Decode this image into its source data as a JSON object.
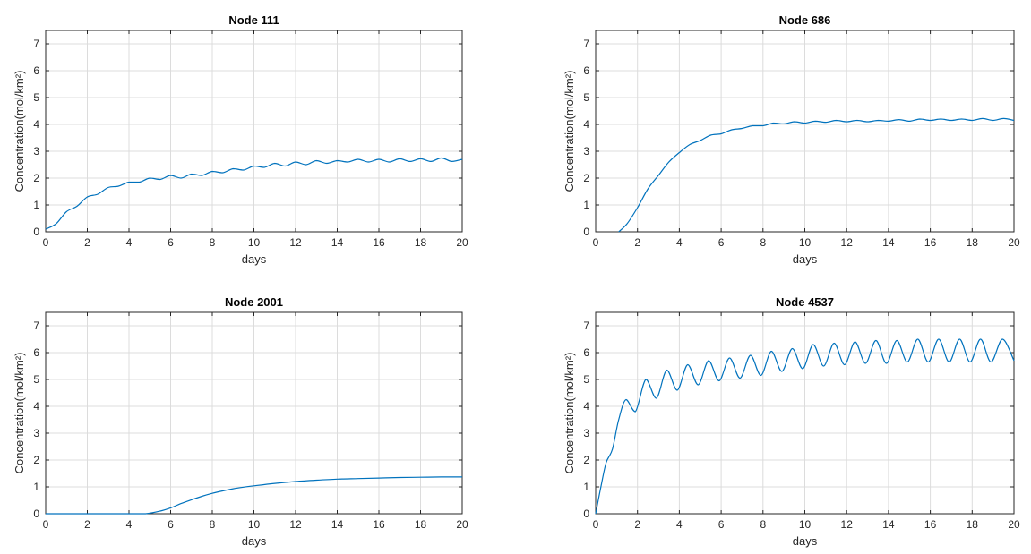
{
  "chart_data": [
    {
      "type": "line",
      "title": "Node 111",
      "xlabel": "days",
      "ylabel": "Concentration(mol/km²)",
      "xlim": [
        0,
        20
      ],
      "ylim": [
        0,
        7.5
      ],
      "xticks": [
        "0",
        "2",
        "4",
        "6",
        "8",
        "10",
        "12",
        "14",
        "16",
        "18",
        "20"
      ],
      "yticks": [
        "0",
        "1",
        "2",
        "3",
        "4",
        "5",
        "6",
        "7"
      ],
      "grid": true,
      "series": [
        {
          "color": "#0072bd",
          "x": [
            0,
            0.5,
            1,
            1.5,
            2,
            2.5,
            3,
            3.5,
            4,
            4.5,
            5,
            5.5,
            6,
            6.5,
            7,
            7.5,
            8,
            8.5,
            9,
            9.5,
            10,
            10.5,
            11,
            11.5,
            12,
            12.5,
            13,
            13.5,
            14,
            14.5,
            15,
            15.5,
            16,
            16.5,
            17,
            17.5,
            18,
            18.5,
            19,
            19.5,
            20
          ],
          "y": [
            0.1,
            0.3,
            0.75,
            0.95,
            1.3,
            1.4,
            1.65,
            1.7,
            1.85,
            1.85,
            2.0,
            1.95,
            2.1,
            2.0,
            2.15,
            2.1,
            2.25,
            2.2,
            2.35,
            2.3,
            2.45,
            2.4,
            2.55,
            2.45,
            2.6,
            2.5,
            2.65,
            2.55,
            2.65,
            2.6,
            2.7,
            2.6,
            2.7,
            2.6,
            2.72,
            2.62,
            2.72,
            2.62,
            2.75,
            2.62,
            2.7
          ]
        }
      ]
    },
    {
      "type": "line",
      "title": "Node 686",
      "xlabel": "days",
      "ylabel": "Concentration(mol/km²)",
      "xlim": [
        0,
        20
      ],
      "ylim": [
        0,
        7.5
      ],
      "xticks": [
        "0",
        "2",
        "4",
        "6",
        "8",
        "10",
        "12",
        "14",
        "16",
        "18",
        "20"
      ],
      "yticks": [
        "0",
        "1",
        "2",
        "3",
        "4",
        "5",
        "6",
        "7"
      ],
      "grid": true,
      "series": [
        {
          "color": "#0072bd",
          "x": [
            1.1,
            1.5,
            2,
            2.5,
            3,
            3.5,
            4,
            4.5,
            5,
            5.5,
            6,
            6.5,
            7,
            7.5,
            8,
            8.5,
            9,
            9.5,
            10,
            10.5,
            11,
            11.5,
            12,
            12.5,
            13,
            13.5,
            14,
            14.5,
            15,
            15.5,
            16,
            16.5,
            17,
            17.5,
            18,
            18.5,
            19,
            19.5,
            20
          ],
          "y": [
            0.0,
            0.3,
            0.9,
            1.6,
            2.1,
            2.6,
            2.95,
            3.25,
            3.4,
            3.6,
            3.65,
            3.8,
            3.85,
            3.95,
            3.95,
            4.05,
            4.02,
            4.1,
            4.05,
            4.12,
            4.08,
            4.15,
            4.1,
            4.15,
            4.1,
            4.15,
            4.12,
            4.18,
            4.12,
            4.2,
            4.15,
            4.2,
            4.15,
            4.2,
            4.15,
            4.22,
            4.15,
            4.22,
            4.15
          ]
        }
      ]
    },
    {
      "type": "line",
      "title": "Node 2001",
      "xlabel": "days",
      "ylabel": "Concentration(mol/km²)",
      "xlim": [
        0,
        20
      ],
      "ylim": [
        0,
        7.5
      ],
      "xticks": [
        "0",
        "2",
        "4",
        "6",
        "8",
        "10",
        "12",
        "14",
        "16",
        "18",
        "20"
      ],
      "yticks": [
        "0",
        "1",
        "2",
        "3",
        "4",
        "5",
        "6",
        "7"
      ],
      "grid": true,
      "series": [
        {
          "color": "#0072bd",
          "x": [
            0,
            1,
            2,
            3,
            4,
            4.8,
            5.5,
            6,
            6.5,
            7,
            7.5,
            8,
            8.5,
            9,
            9.5,
            10,
            11,
            12,
            13,
            14,
            15,
            16,
            17,
            18,
            19,
            20
          ],
          "y": [
            0.0,
            0.0,
            0.0,
            0.0,
            0.0,
            0.0,
            0.1,
            0.22,
            0.38,
            0.52,
            0.65,
            0.76,
            0.85,
            0.93,
            0.99,
            1.04,
            1.13,
            1.2,
            1.25,
            1.29,
            1.31,
            1.33,
            1.35,
            1.36,
            1.37,
            1.37
          ]
        }
      ]
    },
    {
      "type": "line",
      "title": "Node 4537",
      "xlabel": "days",
      "ylabel": "Concentration(mol/km²)",
      "xlim": [
        0,
        20
      ],
      "ylim": [
        0,
        7.5
      ],
      "xticks": [
        "0",
        "2",
        "4",
        "6",
        "8",
        "10",
        "12",
        "14",
        "16",
        "18",
        "20"
      ],
      "yticks": [
        "0",
        "1",
        "2",
        "3",
        "4",
        "5",
        "6",
        "7"
      ],
      "grid": true,
      "series": [
        {
          "color": "#0072bd",
          "x": [
            0,
            0.25,
            0.5,
            0.8,
            1.1,
            1.45,
            1.9,
            2.4,
            2.9,
            3.4,
            3.9,
            4.4,
            4.9,
            5.4,
            5.9,
            6.4,
            6.9,
            7.4,
            7.9,
            8.4,
            8.9,
            9.4,
            9.9,
            10.4,
            10.9,
            11.4,
            11.9,
            12.4,
            12.9,
            13.4,
            13.9,
            14.4,
            14.9,
            15.4,
            15.9,
            16.4,
            16.9,
            17.4,
            17.9,
            18.4,
            18.9,
            19.45,
            20
          ],
          "y": [
            0.0,
            1.0,
            1.9,
            2.4,
            3.5,
            4.25,
            3.8,
            5.0,
            4.3,
            5.35,
            4.6,
            5.55,
            4.8,
            5.7,
            4.95,
            5.8,
            5.05,
            5.9,
            5.15,
            6.05,
            5.3,
            6.15,
            5.4,
            6.3,
            5.5,
            6.35,
            5.55,
            6.4,
            5.6,
            6.45,
            5.6,
            6.45,
            5.65,
            6.5,
            5.65,
            6.5,
            5.65,
            6.5,
            5.65,
            6.5,
            5.65,
            6.5,
            5.7
          ]
        }
      ]
    }
  ]
}
